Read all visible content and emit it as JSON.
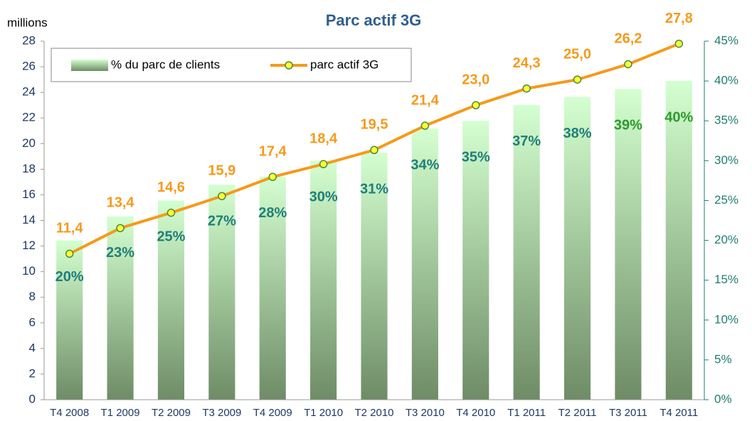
{
  "chart_data": {
    "type": "bar-line",
    "title": "Parc actif 3G",
    "ylabel": "millions",
    "categories": [
      "T4 2008",
      "T1 2009",
      "T2 2009",
      "T3 2009",
      "T4 2009",
      "T1 2010",
      "T2 2010",
      "T3 2010",
      "T4 2010",
      "T1 2011",
      "T2 2011",
      "T3 2011",
      "T4 2011"
    ],
    "ylim": [
      0,
      28
    ],
    "yticks": [
      0,
      2,
      4,
      6,
      8,
      10,
      12,
      14,
      16,
      18,
      20,
      22,
      24,
      26,
      28
    ],
    "y2lim": [
      0,
      45
    ],
    "y2ticks": [
      {
        "value": 0,
        "label": "0%"
      },
      {
        "value": 5,
        "label": "5%"
      },
      {
        "value": 10,
        "label": "10%"
      },
      {
        "value": 15,
        "label": "15%"
      },
      {
        "value": 20,
        "label": "20%"
      },
      {
        "value": 25,
        "label": "25%"
      },
      {
        "value": 30,
        "label": "30%"
      },
      {
        "value": 35,
        "label": "35%"
      },
      {
        "value": 40,
        "label": "40%"
      },
      {
        "value": 45,
        "label": "45%"
      }
    ],
    "legend": "top-left",
    "series": [
      {
        "name": "% du parc de clients",
        "type": "bar",
        "axis": "y2",
        "color": "#7a9a6e",
        "values": [
          20,
          23,
          25,
          27,
          28,
          30,
          31,
          34,
          35,
          37,
          38,
          39,
          40
        ],
        "value_labels": [
          "20%",
          "23%",
          "25%",
          "27%",
          "28%",
          "30%",
          "31%",
          "34%",
          "35%",
          "37%",
          "38%",
          "39%",
          "40%"
        ],
        "value_label_colors": [
          "#1f7f7a",
          "#1f7f7a",
          "#1f7f7a",
          "#1f7f7a",
          "#1f7f7a",
          "#1f7f7a",
          "#1f7f7a",
          "#1f7f7a",
          "#1f7f7a",
          "#1f7f7a",
          "#1f7f7a",
          "#2e9a2e",
          "#2e9a2e"
        ]
      },
      {
        "name": "parc actif 3G",
        "type": "line",
        "color": "#f59a1b",
        "values": [
          11.4,
          13.4,
          14.6,
          15.9,
          17.4,
          18.4,
          19.5,
          21.4,
          23.0,
          24.3,
          25.0,
          26.2,
          27.8
        ],
        "value_labels": [
          "11,4",
          "13,4",
          "14,6",
          "15,9",
          "17,4",
          "18,4",
          "19,5",
          "21,4",
          "23,0",
          "24,3",
          "25,0",
          "26,2",
          "27,8"
        ]
      }
    ]
  }
}
